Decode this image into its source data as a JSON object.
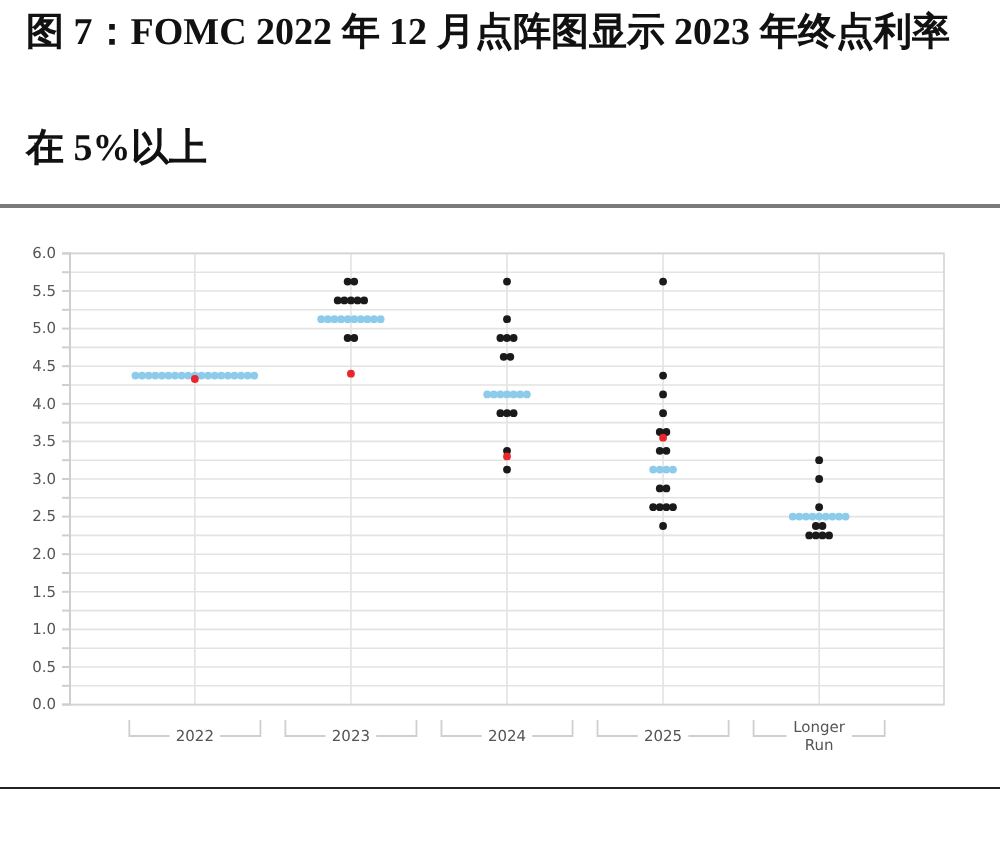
{
  "chart_data": {
    "type": "scatter",
    "title": "图 7：FOMC 2022 年 12 月点阵图显示 2023 年终点利率在 5%以上",
    "categories": [
      "2022",
      "2023",
      "2024",
      "2025",
      "Longer Run"
    ],
    "series": [
      {
        "color": "#8ccbea",
        "values": [
          4.375,
          5.125,
          4.125,
          3.125,
          2.5
        ]
      },
      {
        "color": "#8ccbea",
        "values": [
          4.375,
          5.125,
          4.125,
          3.125,
          2.5
        ]
      },
      {
        "color": "#8ccbea",
        "values": [
          4.375,
          5.125,
          4.125,
          3.125,
          2.5
        ]
      },
      {
        "color": "#8ccbea",
        "values": [
          4.375,
          5.125,
          4.125,
          3.125,
          2.5
        ]
      },
      {
        "color": "#8ccbea",
        "values": [
          4.375,
          5.125,
          4.125,
          null,
          2.5
        ]
      },
      {
        "color": "#8ccbea",
        "values": [
          4.375,
          5.125,
          4.125,
          null,
          2.5
        ]
      },
      {
        "color": "#8ccbea",
        "values": [
          4.375,
          5.125,
          4.125,
          null,
          2.5
        ]
      },
      {
        "color": "#8ccbea",
        "values": [
          4.375,
          5.125,
          null,
          null,
          2.5
        ]
      },
      {
        "color": "#8ccbea",
        "values": [
          4.375,
          5.125,
          null,
          null,
          2.5
        ]
      },
      {
        "color": "#8ccbea",
        "values": [
          4.375,
          5.125,
          null,
          null,
          null
        ]
      },
      {
        "color": "#8ccbea",
        "values": [
          4.375,
          null,
          null,
          null,
          null
        ]
      },
      {
        "color": "#8ccbea",
        "values": [
          4.375,
          null,
          null,
          null,
          null
        ]
      },
      {
        "color": "#8ccbea",
        "values": [
          4.375,
          null,
          null,
          null,
          null
        ]
      },
      {
        "color": "#8ccbea",
        "values": [
          4.375,
          null,
          null,
          null,
          null
        ]
      },
      {
        "color": "#8ccbea",
        "values": [
          4.375,
          null,
          null,
          null,
          null
        ]
      },
      {
        "color": "#8ccbea",
        "values": [
          4.375,
          null,
          null,
          null,
          null
        ]
      },
      {
        "color": "#8ccbea",
        "values": [
          4.375,
          null,
          null,
          null,
          null
        ]
      },
      {
        "color": "#8ccbea",
        "values": [
          4.375,
          null,
          null,
          null,
          null
        ]
      },
      {
        "color": "#8ccbea",
        "values": [
          4.375,
          null,
          null,
          null,
          null
        ]
      },
      {
        "color": "#1a1a1a",
        "values": [
          null,
          5.625,
          5.625,
          5.625,
          3.25
        ]
      },
      {
        "color": "#1a1a1a",
        "values": [
          null,
          5.625,
          5.125,
          4.375,
          3.0
        ]
      },
      {
        "color": "#1a1a1a",
        "values": [
          null,
          5.375,
          4.875,
          4.125,
          2.625
        ]
      },
      {
        "color": "#1a1a1a",
        "values": [
          null,
          5.375,
          4.875,
          3.875,
          2.375
        ]
      },
      {
        "color": "#1a1a1a",
        "values": [
          null,
          5.375,
          4.875,
          3.625,
          2.375
        ]
      },
      {
        "color": "#1a1a1a",
        "values": [
          null,
          5.375,
          4.625,
          3.625,
          2.25
        ]
      },
      {
        "color": "#1a1a1a",
        "values": [
          null,
          5.375,
          4.625,
          3.375,
          2.25
        ]
      },
      {
        "color": "#1a1a1a",
        "values": [
          null,
          4.875,
          3.875,
          3.375,
          2.25
        ]
      },
      {
        "color": "#1a1a1a",
        "values": [
          null,
          4.875,
          3.875,
          2.875,
          2.25
        ]
      },
      {
        "color": "#1a1a1a",
        "values": [
          null,
          null,
          3.875,
          2.875,
          null
        ]
      },
      {
        "color": "#1a1a1a",
        "values": [
          null,
          null,
          3.375,
          2.625,
          null
        ]
      },
      {
        "color": "#1a1a1a",
        "values": [
          null,
          null,
          3.125,
          2.625,
          null
        ]
      },
      {
        "color": "#1a1a1a",
        "values": [
          null,
          null,
          null,
          2.625,
          null
        ]
      },
      {
        "color": "#1a1a1a",
        "values": [
          null,
          null,
          null,
          2.625,
          null
        ]
      },
      {
        "color": "#1a1a1a",
        "values": [
          null,
          null,
          null,
          2.375,
          null
        ]
      },
      {
        "color": "#e8262d",
        "values": [
          4.33,
          4.4,
          3.3,
          3.55,
          null
        ]
      }
    ],
    "ylim": [
      0,
      6
    ],
    "yticks": [
      {
        "value": 0,
        "label": "0.0"
      },
      {
        "value": 0.25,
        "label": null
      },
      {
        "value": 0.5,
        "label": "0.5"
      },
      {
        "value": 0.75,
        "label": null
      },
      {
        "value": 1,
        "label": "1.0"
      },
      {
        "value": 1.25,
        "label": null
      },
      {
        "value": 1.5,
        "label": "1.5"
      },
      {
        "value": 1.75,
        "label": null
      },
      {
        "value": 2,
        "label": "2.0"
      },
      {
        "value": 2.25,
        "label": null
      },
      {
        "value": 2.5,
        "label": "2.5"
      },
      {
        "value": 2.75,
        "label": null
      },
      {
        "value": 3,
        "label": "3.0"
      },
      {
        "value": 3.25,
        "label": null
      },
      {
        "value": 3.5,
        "label": "3.5"
      },
      {
        "value": 3.75,
        "label": null
      },
      {
        "value": 4,
        "label": "4.0"
      },
      {
        "value": 4.25,
        "label": null
      },
      {
        "value": 4.5,
        "label": "4.5"
      },
      {
        "value": 4.75,
        "label": null
      },
      {
        "value": 5,
        "label": "5.0"
      },
      {
        "value": 5.25,
        "label": null
      },
      {
        "value": 5.5,
        "label": "5.5"
      },
      {
        "value": 5.75,
        "label": null
      },
      {
        "value": 6,
        "label": "6.0"
      }
    ],
    "grid": true,
    "marker": "circle"
  }
}
